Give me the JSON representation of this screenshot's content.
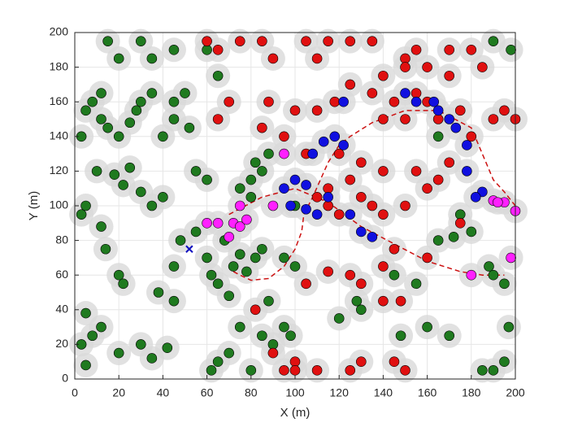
{
  "chart_data": {
    "type": "scatter",
    "xlabel": "X (m)",
    "ylabel": "Y (m)",
    "xlim": [
      0,
      200
    ],
    "ylim": [
      0,
      200
    ],
    "xticks": [
      0,
      20,
      40,
      60,
      80,
      100,
      120,
      140,
      160,
      180,
      200
    ],
    "yticks": [
      0,
      20,
      40,
      60,
      80,
      100,
      120,
      140,
      160,
      180,
      200
    ],
    "grid": true,
    "series": [
      {
        "color": "#1f7a1f",
        "marker": "o",
        "x": [
          5,
          12,
          8,
          15,
          3,
          12,
          10,
          18,
          25,
          22,
          30,
          35,
          40,
          5,
          3,
          12,
          14,
          8,
          12,
          5,
          3,
          20,
          35,
          30,
          42,
          45,
          38,
          22,
          20,
          45,
          48,
          55,
          60,
          62,
          65,
          70,
          72,
          75,
          78,
          68,
          82,
          85,
          100,
          75,
          80,
          82,
          85,
          88,
          80,
          55,
          60,
          40,
          45,
          45,
          50,
          35,
          30,
          28,
          52,
          20,
          25,
          15,
          30,
          35,
          45,
          60,
          65,
          90,
          85,
          75,
          70,
          62,
          65,
          80,
          95,
          98,
          88,
          95,
          100,
          120,
          128,
          145,
          155,
          160,
          170,
          165,
          175,
          180,
          185,
          190,
          195,
          190,
          195,
          188,
          197,
          190,
          198,
          5,
          130,
          172,
          148,
          165,
          20
        ],
        "y": [
          155,
          150,
          160,
          145,
          140,
          165,
          120,
          118,
          122,
          112,
          108,
          100,
          105,
          100,
          95,
          88,
          75,
          25,
          30,
          38,
          20,
          15,
          12,
          20,
          18,
          45,
          50,
          55,
          60,
          65,
          80,
          85,
          70,
          60,
          55,
          48,
          65,
          72,
          62,
          80,
          70,
          75,
          100,
          110,
          115,
          125,
          120,
          130,
          105,
          120,
          115,
          140,
          150,
          160,
          165,
          165,
          160,
          155,
          145,
          140,
          148,
          195,
          195,
          185,
          190,
          190,
          175,
          20,
          25,
          30,
          15,
          5,
          10,
          5,
          30,
          25,
          45,
          70,
          65,
          35,
          45,
          60,
          55,
          30,
          25,
          80,
          95,
          85,
          5,
          5,
          10,
          60,
          55,
          65,
          30,
          195,
          190,
          8,
          40,
          82,
          25,
          140,
          185
        ]
      },
      {
        "color": "#e01010",
        "marker": "o",
        "x": [
          60,
          65,
          75,
          85,
          90,
          105,
          110,
          115,
          125,
          135,
          150,
          155,
          160,
          170,
          170,
          150,
          140,
          135,
          145,
          140,
          150,
          155,
          160,
          165,
          175,
          180,
          195,
          190,
          125,
          118,
          110,
          100,
          88,
          85,
          95,
          70,
          65,
          105,
          120,
          130,
          140,
          125,
          130,
          135,
          120,
          115,
          110,
          140,
          150,
          160,
          165,
          170,
          155,
          145,
          160,
          175,
          140,
          130,
          125,
          115,
          105,
          148,
          140,
          100,
          95,
          110,
          125,
          130,
          145,
          150,
          82,
          90,
          180,
          185,
          200,
          100,
          115
        ],
        "y": [
          195,
          190,
          195,
          195,
          185,
          195,
          185,
          195,
          195,
          195,
          185,
          190,
          180,
          190,
          175,
          180,
          175,
          165,
          160,
          150,
          150,
          165,
          160,
          150,
          155,
          140,
          155,
          150,
          170,
          160,
          155,
          155,
          160,
          145,
          140,
          160,
          150,
          130,
          130,
          125,
          120,
          115,
          105,
          100,
          95,
          100,
          105,
          95,
          100,
          110,
          115,
          125,
          120,
          75,
          70,
          90,
          65,
          55,
          60,
          62,
          55,
          45,
          45,
          10,
          5,
          5,
          5,
          10,
          10,
          5,
          40,
          15,
          190,
          180,
          150,
          5,
          110
        ]
      },
      {
        "color": "#1010e0",
        "marker": "o",
        "x": [
          113,
          118,
          108,
          122,
          150,
          155,
          165,
          170,
          173,
          178,
          95,
          100,
          105,
          115,
          98,
          105,
          110,
          125,
          130,
          135,
          178,
          185,
          182,
          122,
          163
        ],
        "y": [
          137,
          140,
          130,
          135,
          165,
          160,
          155,
          150,
          145,
          135,
          110,
          115,
          112,
          105,
          100,
          98,
          95,
          95,
          85,
          82,
          120,
          108,
          105,
          160,
          160
        ]
      },
      {
        "color": "#ff20ff",
        "marker": "o",
        "x": [
          95,
          60,
          65,
          72,
          75,
          78,
          75,
          70,
          90,
          195,
          200,
          190,
          198,
          180,
          192
        ],
        "y": [
          130,
          90,
          90,
          90,
          88,
          92,
          100,
          82,
          100,
          102,
          97,
          103,
          70,
          60,
          102
        ]
      },
      {
        "color": "#1010c0",
        "marker": "x",
        "x": [
          52
        ],
        "y": [
          75
        ]
      }
    ],
    "lines": [
      {
        "color": "#cc1111",
        "x": [
          72,
          75,
          80,
          88,
          95,
          100,
          103,
          104,
          108,
          115,
          120,
          125,
          135,
          150,
          165,
          180,
          185,
          190,
          195,
          200
        ],
        "y": [
          62,
          60,
          57,
          58,
          65,
          75,
          85,
          95,
          105,
          125,
          135,
          140,
          148,
          155,
          155,
          145,
          130,
          115,
          108,
          100
        ]
      },
      {
        "color": "#cc1111",
        "x": [
          70,
          85,
          100,
          115,
          130,
          145,
          160,
          175,
          185,
          195
        ],
        "y": [
          95,
          105,
          110,
          102,
          88,
          78,
          68,
          62,
          60,
          60
        ]
      }
    ]
  }
}
